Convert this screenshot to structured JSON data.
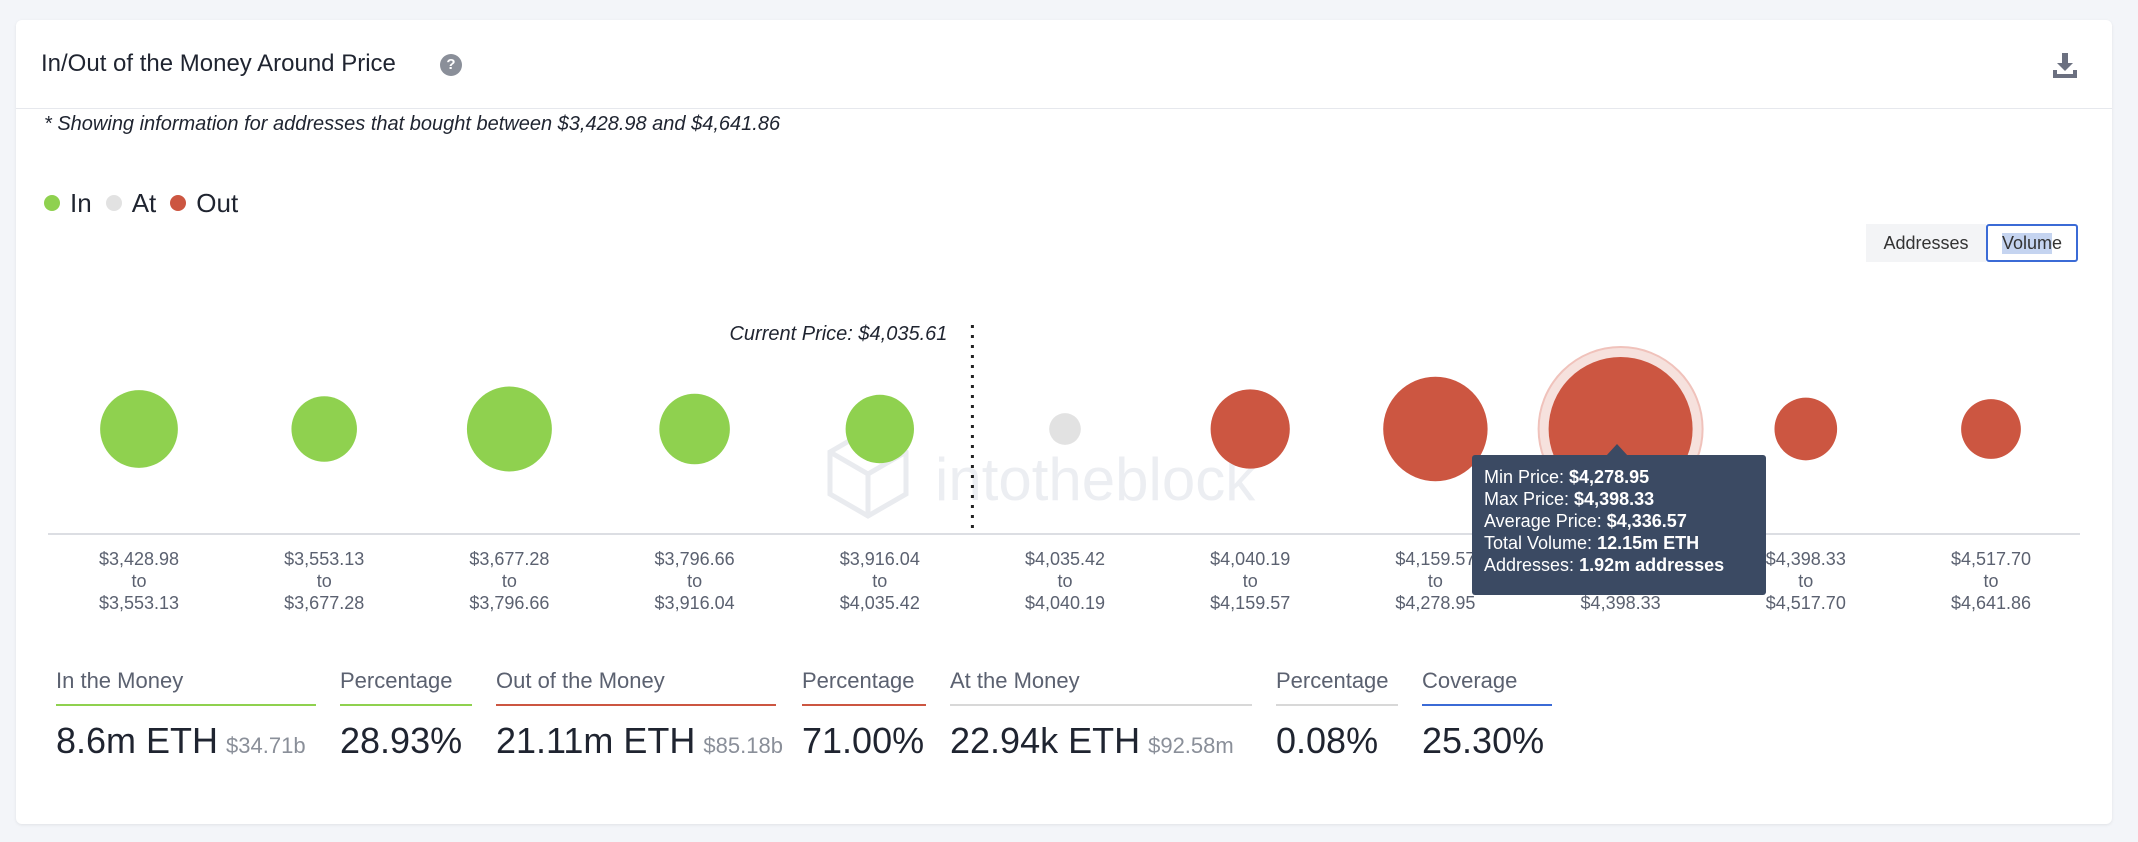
{
  "header": {
    "title": "In/Out of the Money Around Price",
    "help_icon": "question-circle-icon",
    "download_icon": "download-icon"
  },
  "note": "* Showing information for addresses that bought between $3,428.98 and $4,641.86",
  "legend": [
    {
      "label": "In",
      "color": "#8fd14f"
    },
    {
      "label": "At",
      "color": "#e2e2e2"
    },
    {
      "label": "Out",
      "color": "#cc5641"
    }
  ],
  "toggle": {
    "addresses": "Addresses",
    "volume_pre": "Vol",
    "volume_hl": "um",
    "volume_post": "e",
    "active": "Volume"
  },
  "watermark": "intotheblock",
  "chart_data": {
    "type": "scatter",
    "current_price_label": "Current Price: $4,035.61",
    "current_price_after_index": 4,
    "series": [
      {
        "name": "In",
        "color": "#8fd14f"
      },
      {
        "name": "At",
        "color": "#e2e2e2"
      },
      {
        "name": "Out",
        "color": "#cc5641"
      }
    ],
    "clusters": [
      {
        "from": "$3,428.98",
        "to_word": "to",
        "to": "$3,553.13",
        "status": "In",
        "size": 1.08
      },
      {
        "from": "$3,553.13",
        "to_word": "to",
        "to": "$3,677.28",
        "status": "In",
        "size": 0.91
      },
      {
        "from": "$3,677.28",
        "to_word": "to",
        "to": "$3,796.66",
        "status": "In",
        "size": 1.18
      },
      {
        "from": "$3,796.66",
        "to_word": "to",
        "to": "$3,916.04",
        "status": "In",
        "size": 0.98
      },
      {
        "from": "$3,916.04",
        "to_word": "to",
        "to": "$4,035.42",
        "status": "In",
        "size": 0.95
      },
      {
        "from": "$4,035.42",
        "to_word": "to",
        "to": "$4,040.19",
        "status": "At",
        "size": 0.44
      },
      {
        "from": "$4,040.19",
        "to_word": "to",
        "to": "$4,159.57",
        "status": "Out",
        "size": 1.1
      },
      {
        "from": "$4,159.57",
        "to_word": "to",
        "to": "$4,278.95",
        "status": "Out",
        "size": 1.45
      },
      {
        "from": "",
        "to_word": "",
        "to": "$4,398.33",
        "status": "Out",
        "size": 2.0,
        "highlighted": true
      },
      {
        "from": "$4,398.33",
        "to_word": "to",
        "to": "$4,517.70",
        "status": "Out",
        "size": 0.87
      },
      {
        "from": "$4,517.70",
        "to_word": "to",
        "to": "$4,641.86",
        "status": "Out",
        "size": 0.83
      }
    ]
  },
  "tooltip": {
    "min_label": "Min Price:",
    "min": "$4,278.95",
    "max_label": "Max Price:",
    "max": "$4,398.33",
    "avg_label": "Average Price:",
    "avg": "$4,336.57",
    "vol_label": "Total Volume:",
    "vol": "12.15m ETH",
    "addr_label": "Addresses:",
    "addr": "1.92m addresses"
  },
  "stats": {
    "in_money": {
      "label": "In the Money",
      "value": "8.6m ETH",
      "sub": "$34.71b",
      "color": "#8fd14f"
    },
    "in_pct": {
      "label": "Percentage",
      "value": "28.93%",
      "color": "#8fd14f"
    },
    "out_money": {
      "label": "Out of the Money",
      "value": "21.11m ETH",
      "sub": "$85.18b",
      "color": "#cc5641"
    },
    "out_pct": {
      "label": "Percentage",
      "value": "71.00%",
      "color": "#cc5641"
    },
    "at_money": {
      "label": "At the Money",
      "value": "22.94k ETH",
      "sub": "$92.58m",
      "color": "#d8d8d8"
    },
    "at_pct": {
      "label": "Percentage",
      "value": "0.08%",
      "color": "#d8d8d8"
    },
    "coverage": {
      "label": "Coverage",
      "value": "25.30%",
      "color": "#3b6bd6"
    }
  }
}
